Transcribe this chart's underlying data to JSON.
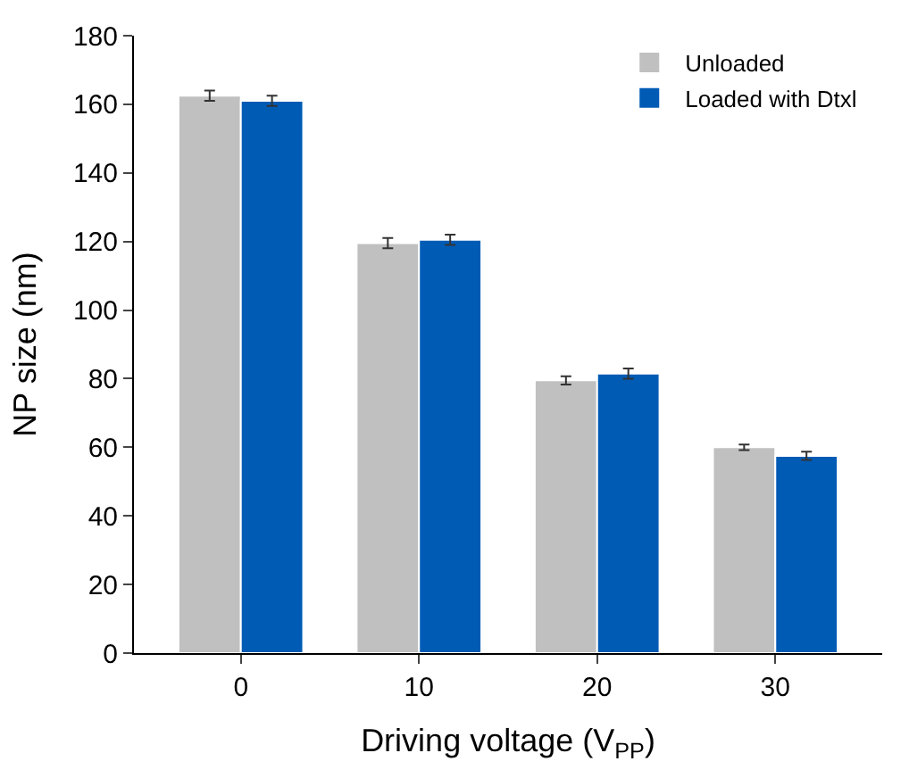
{
  "chart_data": {
    "type": "bar",
    "xlabel": "Driving voltage (V$_{PP}$)",
    "ylabel": "NP size (nm)",
    "categories": [
      "0",
      "10",
      "20",
      "30"
    ],
    "series": [
      {
        "name": "Unloaded",
        "color": "#c0c0c0",
        "values": [
          162.5,
          119.5,
          79.5,
          60
        ],
        "errors": [
          1.5,
          1.5,
          1.2,
          0.8
        ]
      },
      {
        "name": "Loaded with Dtxl",
        "color": "#005bb5",
        "values": [
          161,
          120.5,
          81.5,
          57.5
        ],
        "errors": [
          1.5,
          1.5,
          1.5,
          1.2
        ]
      }
    ],
    "ylim": [
      0,
      180
    ],
    "yticks": [
      0,
      20,
      40,
      60,
      80,
      100,
      120,
      140,
      160,
      180
    ],
    "legend": "top right"
  }
}
